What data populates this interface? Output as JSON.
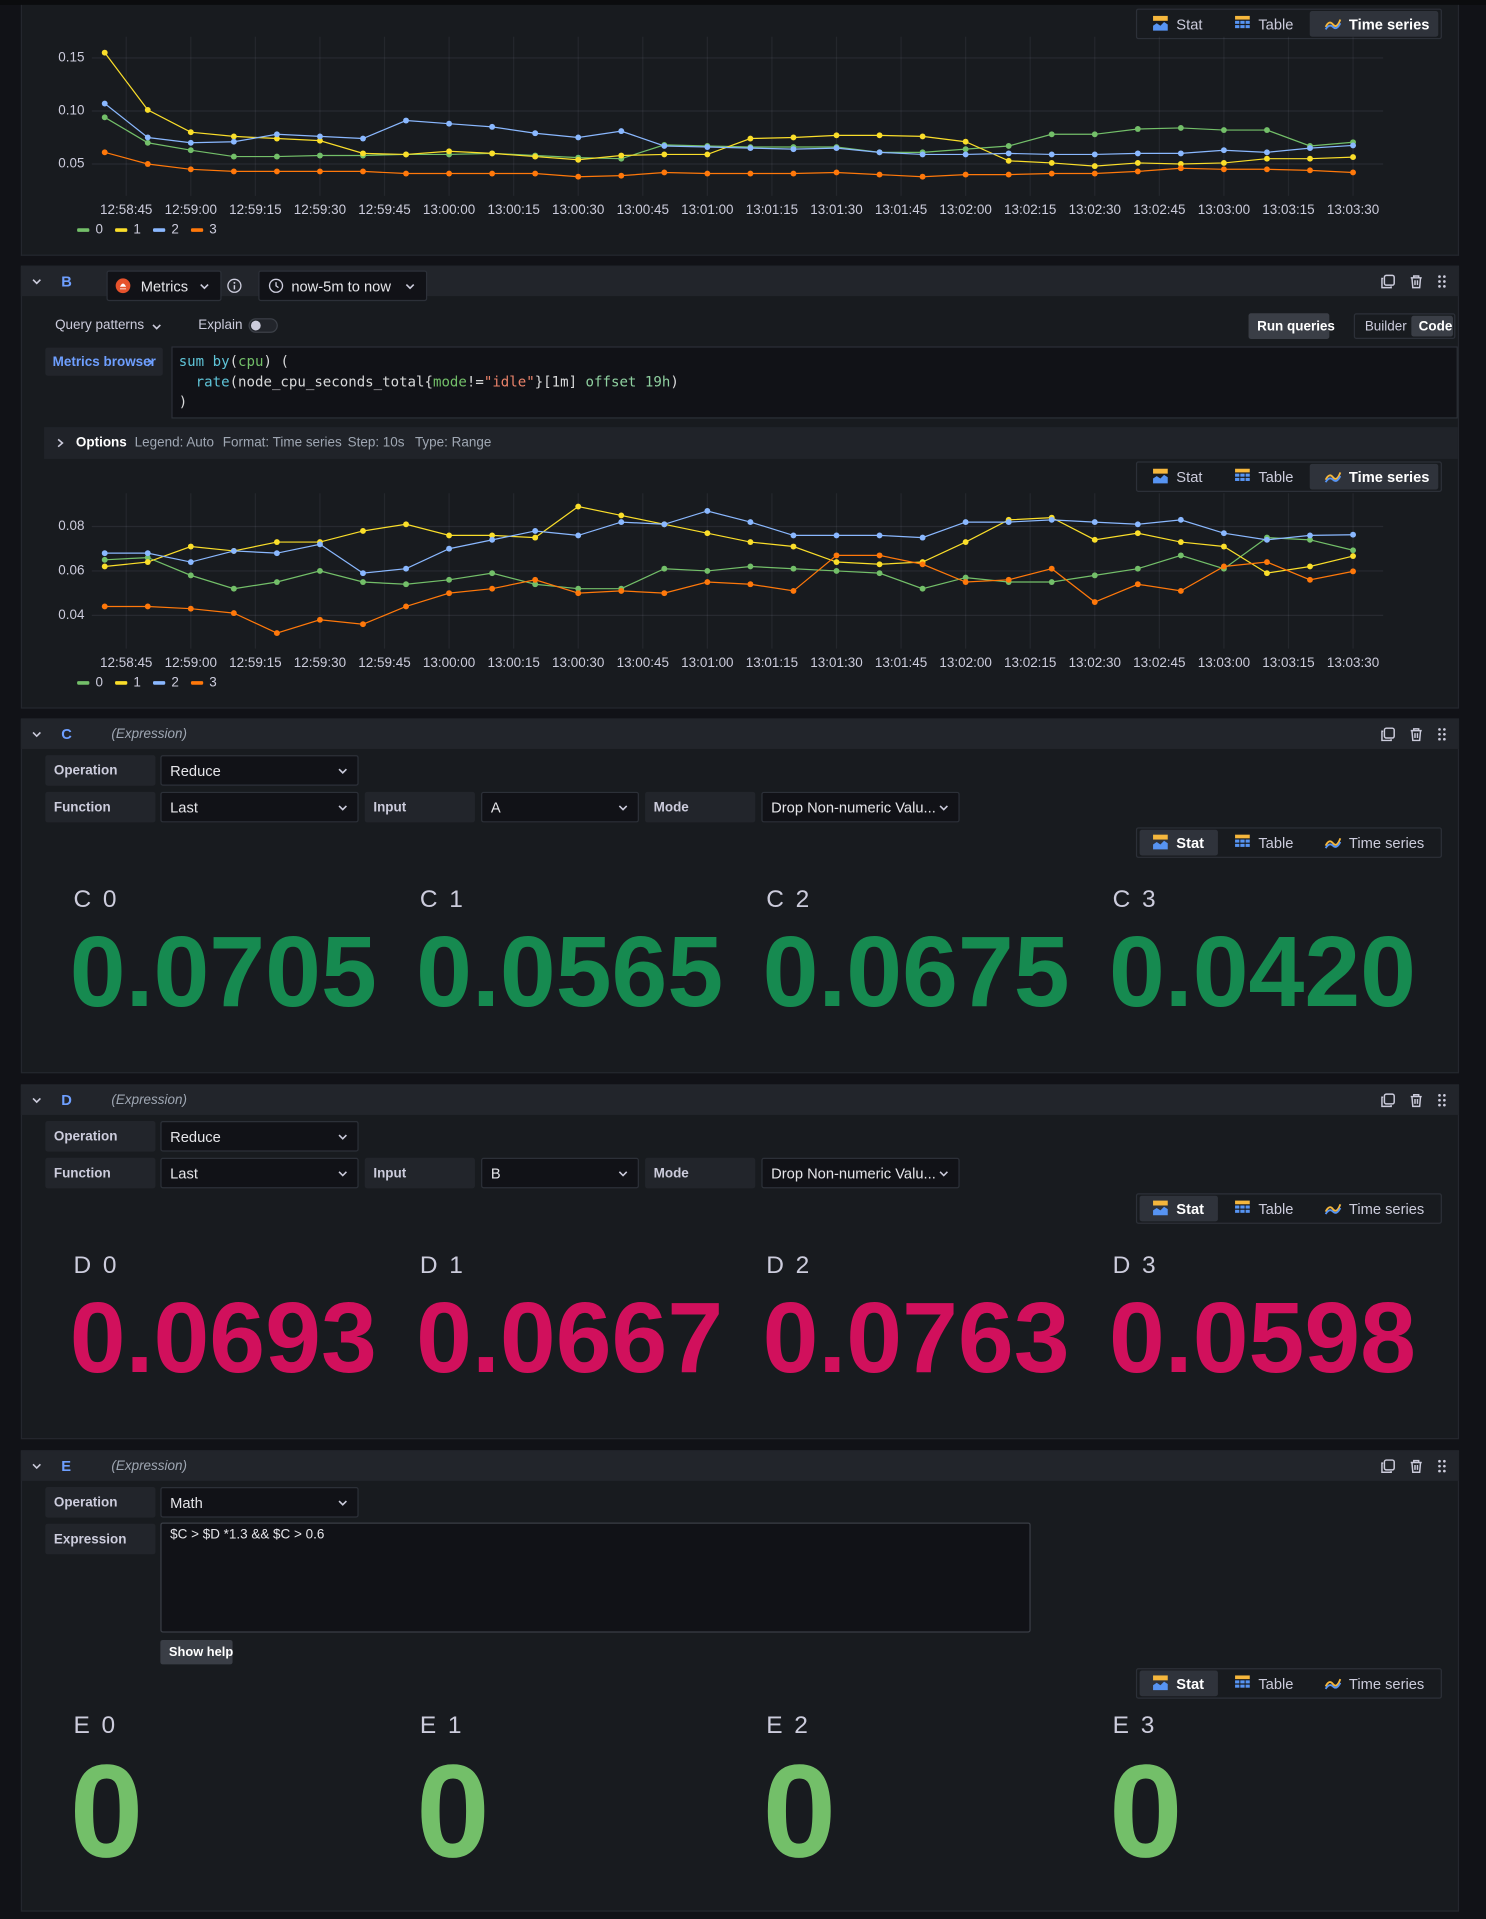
{
  "chart_data": [
    {
      "type": "line",
      "x": [
        "12:58:40",
        "12:58:50",
        "12:59:00",
        "12:59:10",
        "12:59:20",
        "12:59:30",
        "12:59:40",
        "12:59:50",
        "13:00:00",
        "13:00:10",
        "13:00:20",
        "13:00:30",
        "13:00:40",
        "13:00:50",
        "13:01:00",
        "13:01:10",
        "13:01:20",
        "13:01:30",
        "13:01:40",
        "13:01:50",
        "13:02:00",
        "13:02:10",
        "13:02:20",
        "13:02:30",
        "13:02:40",
        "13:02:50",
        "13:03:00",
        "13:03:10",
        "13:03:20",
        "13:03:30"
      ],
      "xlim": [
        "12:58:37",
        "13:03:37"
      ],
      "xticks": [
        "12:58:45",
        "12:59:00",
        "12:59:15",
        "12:59:30",
        "12:59:45",
        "13:00:00",
        "13:00:15",
        "13:00:30",
        "13:00:45",
        "13:01:00",
        "13:01:15",
        "13:01:30",
        "13:01:45",
        "13:02:00",
        "13:02:15",
        "13:02:30",
        "13:02:45",
        "13:03:00",
        "13:03:15",
        "13:03:30"
      ],
      "ylim": [
        0.02,
        0.17
      ],
      "yticks": [
        0.05,
        {
          "value": 0.1,
          "label": "0.10"
        },
        0.15
      ],
      "grid": true,
      "legend": "bottom-left",
      "series": [
        {
          "name": "0",
          "color": "#73bf69",
          "values": [
            0.094,
            0.07,
            0.063,
            0.057,
            0.057,
            0.058,
            0.058,
            0.059,
            0.059,
            0.06,
            0.058,
            0.056,
            0.055,
            0.068,
            0.067,
            0.066,
            0.066,
            0.066,
            0.061,
            0.061,
            0.064,
            0.067,
            0.078,
            0.078,
            0.083,
            0.084,
            0.082,
            0.082,
            0.067,
            0.0705
          ]
        },
        {
          "name": "1",
          "color": "#fade2a",
          "values": [
            0.155,
            0.101,
            0.08,
            0.076,
            0.074,
            0.072,
            0.06,
            0.059,
            0.062,
            0.06,
            0.057,
            0.054,
            0.058,
            0.059,
            0.059,
            0.074,
            0.075,
            0.077,
            0.077,
            0.076,
            0.071,
            0.053,
            0.051,
            0.048,
            0.051,
            0.05,
            0.051,
            0.055,
            0.055,
            0.0565
          ]
        },
        {
          "name": "2",
          "color": "#8ab8ff",
          "values": [
            0.107,
            0.075,
            0.07,
            0.071,
            0.078,
            0.076,
            0.074,
            0.091,
            0.088,
            0.085,
            0.079,
            0.075,
            0.081,
            0.067,
            0.066,
            0.065,
            0.064,
            0.065,
            0.061,
            0.059,
            0.059,
            0.06,
            0.059,
            0.059,
            0.06,
            0.06,
            0.063,
            0.061,
            0.065,
            0.0675
          ]
        },
        {
          "name": "3",
          "color": "#ff780a",
          "values": [
            0.061,
            0.05,
            0.045,
            0.043,
            0.043,
            0.043,
            0.043,
            0.041,
            0.041,
            0.041,
            0.041,
            0.038,
            0.039,
            0.042,
            0.041,
            0.041,
            0.041,
            0.042,
            0.04,
            0.038,
            0.04,
            0.04,
            0.041,
            0.041,
            0.043,
            0.046,
            0.045,
            0.045,
            0.044,
            0.042
          ]
        }
      ]
    },
    {
      "type": "line",
      "x": [
        "12:58:40",
        "12:58:50",
        "12:59:00",
        "12:59:10",
        "12:59:20",
        "12:59:30",
        "12:59:40",
        "12:59:50",
        "13:00:00",
        "13:00:10",
        "13:00:20",
        "13:00:30",
        "13:00:40",
        "13:00:50",
        "13:01:00",
        "13:01:10",
        "13:01:20",
        "13:01:30",
        "13:01:40",
        "13:01:50",
        "13:02:00",
        "13:02:10",
        "13:02:20",
        "13:02:30",
        "13:02:40",
        "13:02:50",
        "13:03:00",
        "13:03:10",
        "13:03:20",
        "13:03:30"
      ],
      "xlim": [
        "12:58:37",
        "13:03:37"
      ],
      "xticks": [
        "12:58:45",
        "12:59:00",
        "12:59:15",
        "12:59:30",
        "12:59:45",
        "13:00:00",
        "13:00:15",
        "13:00:30",
        "13:00:45",
        "13:01:00",
        "13:01:15",
        "13:01:30",
        "13:01:45",
        "13:02:00",
        "13:02:15",
        "13:02:30",
        "13:02:45",
        "13:03:00",
        "13:03:15",
        "13:03:30"
      ],
      "ylim": [
        0.025,
        0.095
      ],
      "yticks": [
        0.04,
        0.06,
        0.08
      ],
      "grid": true,
      "legend": "bottom-left",
      "series": [
        {
          "name": "0",
          "color": "#73bf69",
          "values": [
            0.065,
            0.066,
            0.058,
            0.052,
            0.055,
            0.06,
            0.055,
            0.054,
            0.056,
            0.059,
            0.054,
            0.052,
            0.052,
            0.061,
            0.06,
            0.062,
            0.061,
            0.06,
            0.059,
            0.052,
            0.057,
            0.055,
            0.055,
            0.058,
            0.061,
            0.067,
            0.061,
            0.075,
            0.074,
            0.0693
          ]
        },
        {
          "name": "1",
          "color": "#fade2a",
          "values": [
            0.062,
            0.064,
            0.071,
            0.069,
            0.073,
            0.073,
            0.078,
            0.081,
            0.076,
            0.076,
            0.075,
            0.089,
            0.085,
            0.081,
            0.077,
            0.073,
            0.071,
            0.064,
            0.063,
            0.064,
            0.073,
            0.083,
            0.084,
            0.074,
            0.077,
            0.073,
            0.071,
            0.059,
            0.062,
            0.0667
          ]
        },
        {
          "name": "2",
          "color": "#8ab8ff",
          "values": [
            0.068,
            0.068,
            0.064,
            0.069,
            0.068,
            0.072,
            0.059,
            0.061,
            0.07,
            0.074,
            0.078,
            0.076,
            0.082,
            0.081,
            0.087,
            0.082,
            0.076,
            0.076,
            0.076,
            0.075,
            0.082,
            0.082,
            0.083,
            0.082,
            0.081,
            0.083,
            0.077,
            0.074,
            0.076,
            0.0763
          ]
        },
        {
          "name": "3",
          "color": "#ff780a",
          "values": [
            0.044,
            0.044,
            0.043,
            0.041,
            0.032,
            0.038,
            0.036,
            0.044,
            0.05,
            0.052,
            0.056,
            0.05,
            0.051,
            0.05,
            0.055,
            0.054,
            0.051,
            0.067,
            0.067,
            0.063,
            0.055,
            0.056,
            0.061,
            0.046,
            0.054,
            0.051,
            0.062,
            0.064,
            0.056,
            0.0598
          ]
        }
      ]
    }
  ],
  "tabs": [
    "Stat",
    "Table",
    "Time series"
  ],
  "query_b": {
    "letter": "B",
    "datasource": "Metrics",
    "time_range": "now-5m to now",
    "query_patterns": "Query patterns",
    "explain": "Explain",
    "run": "Run queries",
    "editor_modes": [
      "Builder",
      "Code"
    ],
    "metrics_browser": "Metrics browser",
    "code": [
      [
        {
          "text": "sum by",
          "color": "#5fc4d8"
        },
        {
          "text": "(",
          "color": "#d8d9da"
        },
        {
          "text": "cpu",
          "color": "#73bf69"
        },
        {
          "text": ") (",
          "color": "#d8d9da"
        }
      ],
      [
        {
          "text": "  rate",
          "color": "#5fc4d8"
        },
        {
          "text": "(node_cpu_seconds_total{",
          "color": "#d8d9da"
        },
        {
          "text": "mode",
          "color": "#73bf69"
        },
        {
          "text": "!=",
          "color": "#d8d9da"
        },
        {
          "text": "\"idle\"",
          "color": "#e9826a"
        },
        {
          "text": "}[1m] ",
          "color": "#d8d9da"
        },
        {
          "text": "offset 19h",
          "color": "#8fd0a0"
        },
        {
          "text": ")",
          "color": "#d8d9da"
        }
      ],
      [
        {
          "text": ")",
          "color": "#d8d9da"
        }
      ]
    ],
    "options": [
      "Options",
      "Legend: Auto",
      "Format: Time series",
      "Step: 10s",
      "Type: Range"
    ]
  },
  "expressions": [
    {
      "letter": "C",
      "kind": "(Expression)",
      "rows": [
        [
          {
            "label": "Operation",
            "value": "Reduce"
          }
        ],
        [
          {
            "label": "Function",
            "value": "Last"
          },
          {
            "label": "Input",
            "value": "A"
          },
          {
            "label": "Mode",
            "value": "Drop Non-numeric Valu..."
          }
        ]
      ],
      "names": [
        "C 0",
        "C 1",
        "C 2",
        "C 3"
      ],
      "values": [
        0.0705,
        0.0565,
        0.0675,
        0.042
      ],
      "value_labels": [
        "0.0705",
        "0.0565",
        "0.0675",
        "0.0420"
      ],
      "color": "#168a50"
    },
    {
      "letter": "D",
      "kind": "(Expression)",
      "rows": [
        [
          {
            "label": "Operation",
            "value": "Reduce"
          }
        ],
        [
          {
            "label": "Function",
            "value": "Last"
          },
          {
            "label": "Input",
            "value": "B"
          },
          {
            "label": "Mode",
            "value": "Drop Non-numeric Valu..."
          }
        ]
      ],
      "names": [
        "D 0",
        "D 1",
        "D 2",
        "D 3"
      ],
      "values": [
        0.0693,
        0.0667,
        0.0763,
        0.0598
      ],
      "color": "#d1105c"
    },
    {
      "letter": "E",
      "kind": "(Expression)",
      "rows": [
        [
          {
            "label": "Operation",
            "value": "Math"
          }
        ]
      ],
      "expression": {
        "label": "Expression",
        "value": "$C > $D *1.3 && $C > 0.6"
      },
      "help": "Show help",
      "names": [
        "E 0",
        "E 1",
        "E 2",
        "E 3"
      ],
      "values": [
        0,
        0,
        0,
        0
      ],
      "color": "#73bf69"
    }
  ]
}
